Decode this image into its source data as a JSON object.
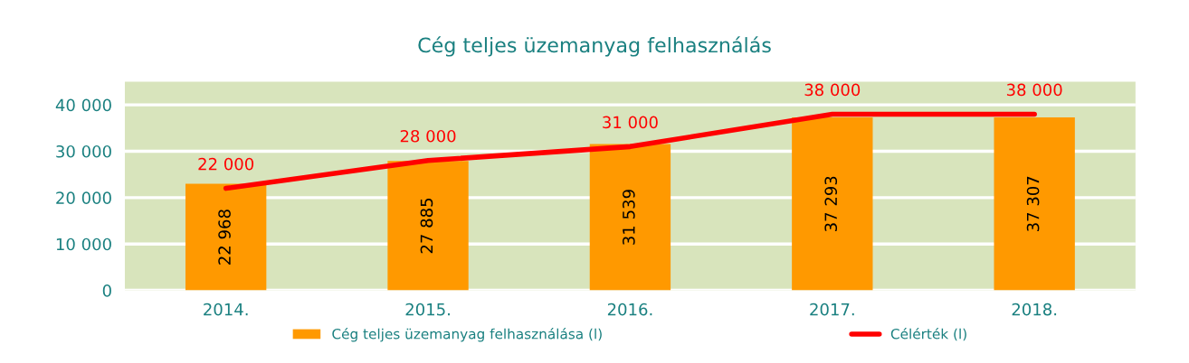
{
  "chart_data": {
    "type": "bar",
    "title": "Cég teljes üzemanyag felhasználás",
    "categories": [
      "2014.",
      "2015.",
      "2016.",
      "2017.",
      "2018."
    ],
    "series": [
      {
        "name": "Cég teljes üzemanyag felhasználása (l)",
        "color": "#ff9900",
        "values": [
          22968,
          27885,
          31539,
          37293,
          37307
        ],
        "value_labels": [
          "22 968",
          "27 885",
          "31 539",
          "37 293",
          "37 307"
        ]
      },
      {
        "name": "Célérték (l)",
        "type": "line",
        "color": "#ff0000",
        "values": [
          22000,
          28000,
          31000,
          38000,
          38000
        ],
        "value_labels": [
          "22 000",
          "28 000",
          "31 000",
          "38 000",
          "38 000"
        ]
      }
    ],
    "ylim": [
      0,
      45000
    ],
    "yticks": [
      0,
      {
        "value": 10000,
        "label": "10 000"
      },
      {
        "value": 20000,
        "label": "20 000"
      },
      {
        "value": 30000,
        "label": "30 000"
      },
      {
        "value": 40000,
        "label": "40 000"
      }
    ],
    "grid": "y",
    "legend": "bottom"
  }
}
